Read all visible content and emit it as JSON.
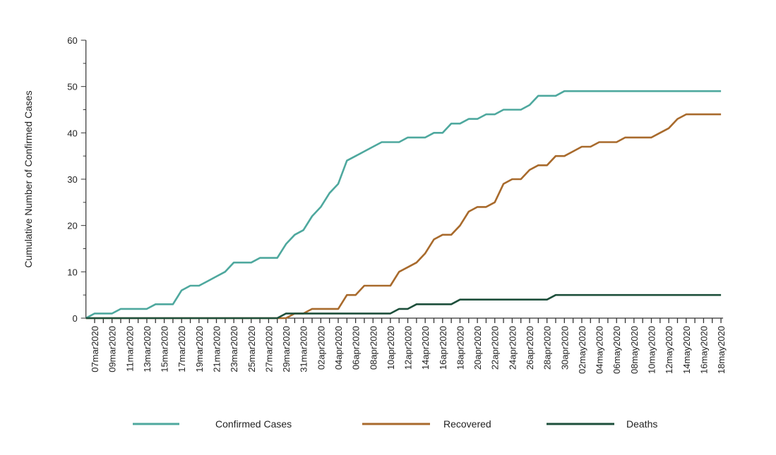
{
  "chart_data": {
    "type": "line",
    "title": "",
    "xlabel": "",
    "ylabel": "Cumulative Number of Confirmed Cases",
    "ylim": [
      0,
      60
    ],
    "yticks": [
      0,
      10,
      20,
      30,
      40,
      50,
      60
    ],
    "grid": false,
    "legend_position": "bottom",
    "x": [
      "06mar2020",
      "07mar2020",
      "08mar2020",
      "09mar2020",
      "10mar2020",
      "11mar2020",
      "12mar2020",
      "13mar2020",
      "14mar2020",
      "15mar2020",
      "16mar2020",
      "17mar2020",
      "18mar2020",
      "19mar2020",
      "20mar2020",
      "21mar2020",
      "22mar2020",
      "23mar2020",
      "24mar2020",
      "25mar2020",
      "26mar2020",
      "27mar2020",
      "28mar2020",
      "29mar2020",
      "30mar2020",
      "31mar2020",
      "01apr2020",
      "02apr2020",
      "03apr2020",
      "04apr2020",
      "05apr2020",
      "06apr2020",
      "07apr2020",
      "08apr2020",
      "09apr2020",
      "10apr2020",
      "11apr2020",
      "12apr2020",
      "13apr2020",
      "14apr2020",
      "15apr2020",
      "16apr2020",
      "17apr2020",
      "18apr2020",
      "19apr2020",
      "20apr2020",
      "21apr2020",
      "22apr2020",
      "23apr2020",
      "24apr2020",
      "25apr2020",
      "26apr2020",
      "27apr2020",
      "28apr2020",
      "29apr2020",
      "30apr2020",
      "01may2020",
      "02may2020",
      "03may2020",
      "04may2020",
      "05may2020",
      "06may2020",
      "07may2020",
      "08may2020",
      "09may2020",
      "10may2020",
      "11may2020",
      "12may2020",
      "13may2020",
      "14may2020",
      "15may2020",
      "16may2020",
      "17may2020",
      "18may2020"
    ],
    "tick_labels": [
      "07mar2020",
      "09mar2020",
      "11mar2020",
      "13mar2020",
      "15mar2020",
      "17mar2020",
      "19mar2020",
      "21mar2020",
      "23mar2020",
      "25mar2020",
      "27mar2020",
      "29mar2020",
      "31mar2020",
      "02apr2020",
      "04apr2020",
      "06apr2020",
      "08apr2020",
      "10apr2020",
      "12apr2020",
      "14apr2020",
      "16apr2020",
      "18apr2020",
      "20apr2020",
      "22apr2020",
      "24apr2020",
      "26apr2020",
      "28apr2020",
      "30apr2020",
      "02may2020",
      "04may2020",
      "06may2020",
      "08may2020",
      "10may2020",
      "12may2020",
      "14may2020",
      "16may2020",
      "18may2020"
    ],
    "series": [
      {
        "name": "Confirmed Cases",
        "color": "#4ea89e",
        "values": [
          0,
          1,
          1,
          1,
          2,
          2,
          2,
          2,
          3,
          3,
          3,
          6,
          7,
          7,
          8,
          9,
          10,
          12,
          12,
          12,
          13,
          13,
          13,
          16,
          18,
          19,
          22,
          24,
          27,
          29,
          34,
          35,
          36,
          37,
          38,
          38,
          38,
          39,
          39,
          39,
          40,
          40,
          42,
          42,
          43,
          43,
          44,
          44,
          45,
          45,
          45,
          46,
          48,
          48,
          48,
          49,
          49,
          49,
          49,
          49,
          49,
          49,
          49,
          49,
          49,
          49,
          49,
          49,
          49,
          49,
          49,
          49,
          49,
          49
        ]
      },
      {
        "name": "Recovered",
        "color": "#a86a2c",
        "values": [
          0,
          0,
          0,
          0,
          0,
          0,
          0,
          0,
          0,
          0,
          0,
          0,
          0,
          0,
          0,
          0,
          0,
          0,
          0,
          0,
          0,
          0,
          0,
          0,
          1,
          1,
          2,
          2,
          2,
          2,
          5,
          5,
          7,
          7,
          7,
          7,
          10,
          11,
          12,
          14,
          17,
          18,
          18,
          20,
          23,
          24,
          24,
          25,
          29,
          30,
          30,
          32,
          33,
          33,
          35,
          35,
          36,
          37,
          37,
          38,
          38,
          38,
          39,
          39,
          39,
          39,
          40,
          41,
          43,
          44,
          44,
          44,
          44,
          44
        ]
      },
      {
        "name": "Deaths",
        "color": "#1d4f3b",
        "values": [
          0,
          0,
          0,
          0,
          0,
          0,
          0,
          0,
          0,
          0,
          0,
          0,
          0,
          0,
          0,
          0,
          0,
          0,
          0,
          0,
          0,
          0,
          0,
          1,
          1,
          1,
          1,
          1,
          1,
          1,
          1,
          1,
          1,
          1,
          1,
          1,
          2,
          2,
          3,
          3,
          3,
          3,
          3,
          4,
          4,
          4,
          4,
          4,
          4,
          4,
          4,
          4,
          4,
          4,
          5,
          5,
          5,
          5,
          5,
          5,
          5,
          5,
          5,
          5,
          5,
          5,
          5,
          5,
          5,
          5,
          5,
          5,
          5,
          5
        ]
      }
    ]
  }
}
